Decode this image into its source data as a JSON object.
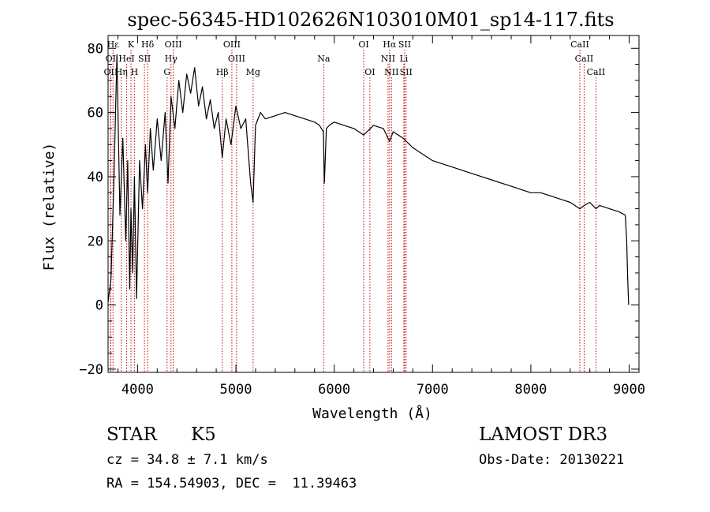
{
  "chart_data": {
    "type": "line",
    "title": "spec-56345-HD102626N103010M01_sp14-117.fits",
    "xlabel": "Wavelength (Å)",
    "ylabel": "Flux (relative)",
    "xlim": [
      3700,
      9100
    ],
    "ylim": [
      -21,
      84
    ],
    "xticks": [
      4000,
      5000,
      6000,
      7000,
      8000,
      9000
    ],
    "yticks": [
      -20,
      0,
      20,
      40,
      60,
      80
    ],
    "xtick_labels": [
      "4000",
      "5000",
      "6000",
      "7000",
      "8000",
      "9000"
    ],
    "ytick_labels": [
      "−20",
      "0",
      "20",
      "40",
      "60",
      "80"
    ],
    "series": [
      {
        "name": "spectrum",
        "x": [
          3700,
          3730,
          3760,
          3790,
          3820,
          3850,
          3880,
          3900,
          3920,
          3933,
          3950,
          3968,
          3990,
          4020,
          4050,
          4080,
          4102,
          4130,
          4160,
          4200,
          4240,
          4280,
          4310,
          4340,
          4380,
          4420,
          4460,
          4500,
          4540,
          4580,
          4620,
          4660,
          4700,
          4740,
          4780,
          4820,
          4861,
          4900,
          4950,
          5000,
          5050,
          5100,
          5150,
          5175,
          5200,
          5250,
          5300,
          5400,
          5500,
          5600,
          5700,
          5800,
          5850,
          5890,
          5900,
          5920,
          5950,
          6000,
          6100,
          6200,
          6300,
          6400,
          6500,
          6563,
          6600,
          6700,
          6800,
          6900,
          7000,
          7100,
          7200,
          7300,
          7400,
          7500,
          7600,
          7700,
          7800,
          7900,
          8000,
          8100,
          8200,
          8300,
          8400,
          8498,
          8542,
          8600,
          8662,
          8700,
          8800,
          8900,
          8960,
          8975,
          8985,
          8995
        ],
        "y": [
          1,
          8,
          40,
          78,
          28,
          52,
          20,
          45,
          5,
          30,
          10,
          40,
          2,
          45,
          30,
          50,
          35,
          55,
          42,
          58,
          45,
          60,
          38,
          65,
          55,
          70,
          60,
          72,
          66,
          74,
          62,
          68,
          58,
          64,
          55,
          60,
          46,
          58,
          50,
          62,
          55,
          58,
          38,
          32,
          56,
          60,
          58,
          59,
          60,
          59,
          58,
          57,
          56,
          54,
          38,
          55,
          56,
          57,
          56,
          55,
          53,
          56,
          55,
          51,
          54,
          52,
          49,
          47,
          45,
          44,
          43,
          42,
          41,
          40,
          39,
          38,
          37,
          36,
          35,
          35,
          34,
          33,
          32,
          30,
          31,
          32,
          30,
          31,
          30,
          29,
          28,
          20,
          8,
          0
        ]
      }
    ],
    "lines": [
      {
        "label": "Hε",
        "wave": 3750,
        "row": 0
      },
      {
        "label": "K",
        "wave": 3933,
        "row": 0
      },
      {
        "label": "Hδ",
        "wave": 4102,
        "row": 0
      },
      {
        "label": "OIII",
        "wave": 4363,
        "row": 0
      },
      {
        "label": "OIII",
        "wave": 4959,
        "row": 0
      },
      {
        "label": "OI",
        "wave": 6300,
        "row": 0
      },
      {
        "label": "Hα",
        "wave": 6563,
        "row": 0
      },
      {
        "label": "SII",
        "wave": 6717,
        "row": 0
      },
      {
        "label": "CaII",
        "wave": 8498,
        "row": 0
      },
      {
        "label": "OI",
        "wave": 3727,
        "row": 1
      },
      {
        "label": "HeI",
        "wave": 3889,
        "row": 1
      },
      {
        "label": "SII",
        "wave": 4070,
        "row": 1
      },
      {
        "label": "Hγ",
        "wave": 4340,
        "row": 1
      },
      {
        "label": "OIII",
        "wave": 5007,
        "row": 1
      },
      {
        "label": "Na",
        "wave": 5893,
        "row": 1
      },
      {
        "label": "NII",
        "wave": 6548,
        "row": 1
      },
      {
        "label": "Li",
        "wave": 6708,
        "row": 1
      },
      {
        "label": "CaII",
        "wave": 8542,
        "row": 1
      },
      {
        "label": "OII",
        "wave": 3727,
        "row": 2
      },
      {
        "label": "Hη",
        "wave": 3835,
        "row": 2
      },
      {
        "label": "H",
        "wave": 3968,
        "row": 2
      },
      {
        "label": "G",
        "wave": 4300,
        "row": 2
      },
      {
        "label": "Hβ",
        "wave": 4861,
        "row": 2
      },
      {
        "label": "Mg",
        "wave": 5175,
        "row": 2
      },
      {
        "label": "OI",
        "wave": 6363,
        "row": 2
      },
      {
        "label": "NII",
        "wave": 6583,
        "row": 2
      },
      {
        "label": "SII",
        "wave": 6731,
        "row": 2
      },
      {
        "label": "CaII",
        "wave": 8662,
        "row": 2
      }
    ]
  },
  "info": {
    "class": "STAR",
    "subclass": "K5",
    "survey": "LAMOST DR3",
    "redshift": "cz = 34.8 ± 7.1 km/s",
    "obs_date": "Obs-Date: 20130221",
    "coords": "RA = 154.54903, DEC =  11.39463"
  },
  "colors": {
    "line_marker": "#cc0000",
    "spectrum": "#000000",
    "axes": "#000000"
  }
}
